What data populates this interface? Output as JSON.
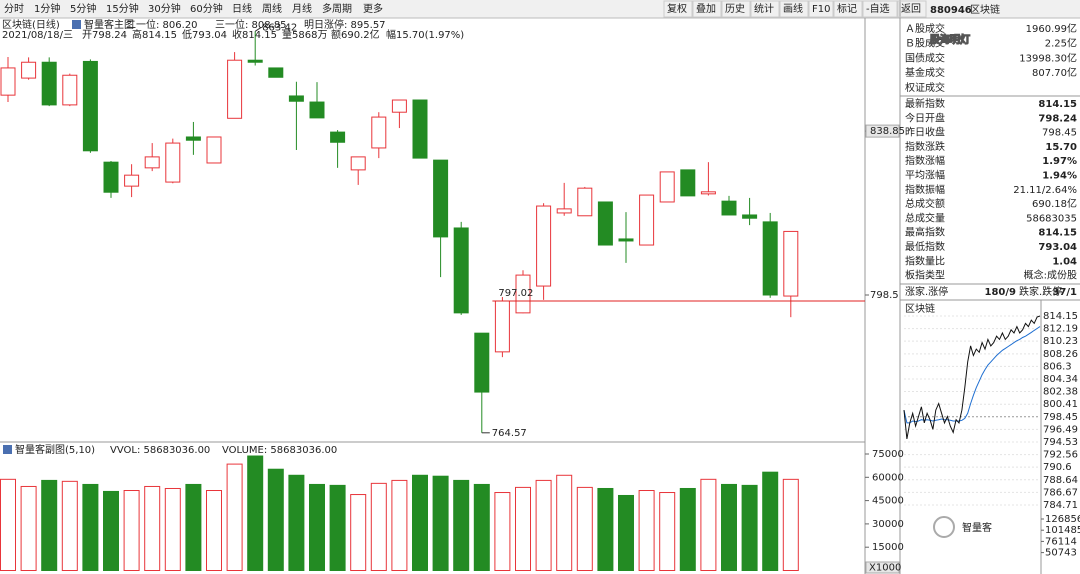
{
  "toolbar": {
    "tabs": [
      "分时",
      "1分钟",
      "5分钟",
      "15分钟",
      "30分钟",
      "60分钟",
      "日线",
      "周线",
      "月线",
      "多周期",
      "更多"
    ],
    "active_tab": 6,
    "buttons": [
      "复权",
      "叠加",
      "历史",
      "统计",
      "画线",
      "F10",
      "标记",
      "-自选",
      "返回"
    ]
  },
  "kline": {
    "name": "区块链(日线)",
    "indicator": "智量客主图",
    "items": [
      "二一位: 806.20",
      "三一位: 808.85",
      "明日涨停: 895.57"
    ],
    "info": [
      {
        "text": "2021/08/18/三",
        "color": "#1a4fb0"
      },
      {
        "text": "开798.24",
        "color": "#1c8a1c"
      },
      {
        "text": "高814.15",
        "color": "#e02020"
      },
      {
        "text": "低793.04",
        "color": "#1c8a1c"
      },
      {
        "text": "收814.15",
        "color": "#e02020"
      },
      {
        "text": "量5868万",
        "color": "#333333"
      },
      {
        "text": "额690.2亿",
        "color": "#333333"
      },
      {
        "text": "幅15.70(1.97%)",
        "color": "#e02020"
      }
    ],
    "open": [
      847.7,
      851.9,
      855.8,
      845.3,
      856.0,
      831.2,
      825.3,
      829.8,
      826.3,
      837.4,
      831.0,
      842.0,
      856.3,
      854.4,
      847.5,
      846.0,
      838.6,
      829.3,
      834.7,
      843.5,
      846.5,
      831.7,
      815.0,
      789.1,
      784.5,
      794.1,
      800.7,
      818.7,
      818.0,
      821.4,
      812.3,
      810.8,
      821.4,
      829.3,
      823.4,
      821.6,
      818.2,
      816.5,
      798.24
    ],
    "high": [
      857.1,
      857.0,
      857.0,
      853.0,
      856.5,
      831.5,
      830.7,
      835.9,
      837.0,
      841.1,
      837.4,
      858.3,
      863.42,
      854.4,
      851.0,
      850.9,
      839.1,
      832.5,
      843.5,
      846.5,
      846.5,
      831.7,
      816.5,
      789.1,
      798.0,
      804.6,
      821.1,
      826.1,
      825.1,
      821.4,
      818.9,
      823.1,
      828.8,
      829.3,
      831.2,
      822.9,
      822.4,
      818.7,
      814.15
    ],
    "low": [
      846.0,
      851.5,
      845.0,
      845.0,
      833.5,
      822.4,
      822.6,
      829.0,
      826.0,
      833.0,
      831.0,
      842.0,
      855.0,
      852.1,
      834.2,
      842.1,
      829.8,
      825.6,
      832.2,
      839.6,
      832.2,
      802.9,
      793.6,
      764.57,
      783.2,
      794.0,
      797.3,
      818.0,
      818.0,
      810.8,
      806.4,
      810.8,
      821.4,
      822.9,
      823.0,
      818.2,
      815.7,
      797.8,
      793.04
    ],
    "close": [
      854.4,
      855.8,
      845.3,
      852.6,
      834.0,
      823.8,
      828.0,
      832.5,
      835.9,
      836.6,
      837.4,
      856.3,
      855.8,
      852.1,
      846.2,
      842.1,
      836.1,
      832.5,
      842.3,
      846.5,
      832.2,
      812.8,
      794.1,
      774.6,
      797.02,
      803.4,
      820.4,
      819.7,
      824.8,
      810.8,
      811.8,
      823.1,
      828.8,
      822.9,
      823.9,
      818.2,
      817.4,
      798.5,
      814.15
    ],
    "ylim": [
      762.8,
      866.2
    ],
    "yticks": [
      838.85,
      798.5
    ],
    "up_color": "#e8353a",
    "down_color": "#238b23"
  },
  "volume": {
    "title": "智量客副图(5,10)",
    "items": [
      "VVOL: 58683036.00",
      "VOLUME: 58683036.00"
    ],
    "values": [
      58700,
      54100,
      58000,
      57400,
      55400,
      50900,
      51500,
      54100,
      52800,
      55400,
      51500,
      68500,
      73700,
      65200,
      61300,
      55400,
      54800,
      48900,
      56100,
      58000,
      61300,
      60700,
      58000,
      55400,
      50200,
      53500,
      58000,
      61300,
      53500,
      52800,
      48300,
      51500,
      50200,
      52800,
      58700,
      55400,
      54800,
      63300,
      58683
    ],
    "ylim": [
      0,
      75000
    ],
    "yticks": [
      75000,
      60000,
      45000,
      30000,
      15000
    ],
    "unit": "X1000"
  },
  "quote_panel": {
    "code": "880946",
    "name": "区块链",
    "rows": [
      {
        "label": "Ａ股成交",
        "value": "1960.99亿"
      },
      {
        "label": "Ｂ股成交",
        "value": "2.25亿"
      },
      {
        "label": "国债成交",
        "value": "13998.30亿"
      },
      {
        "label": "基金成交",
        "value": "807.70亿"
      },
      {
        "label": "权证成交"
      },
      {
        "label": "最新指数",
        "value": "814.15",
        "color": "#e02020"
      },
      {
        "label": "今日开盘",
        "value": "798.24",
        "color": "#1c8a1c"
      },
      {
        "label": "昨日收盘",
        "value": "798.45"
      },
      {
        "label": "指数涨跌",
        "value": "15.70",
        "color": "#e02020"
      },
      {
        "label": "指数涨幅",
        "value": "1.97%",
        "color": "#e02020"
      },
      {
        "label": "平均涨幅",
        "value": "1.94%",
        "color": "#e02020"
      },
      {
        "label": "指数振幅",
        "value": "21.11/2.64%"
      },
      {
        "label": "总成交额",
        "value": "690.18亿"
      },
      {
        "label": "总成交量",
        "value": "58683035"
      },
      {
        "label": "最高指数",
        "value": "814.15",
        "color": "#e02020"
      },
      {
        "label": "最低指数",
        "value": "793.04",
        "color": "#1c8a1c"
      },
      {
        "label": "指数量比",
        "value": "1.04",
        "color": "#e02020"
      },
      {
        "label": "板指类型",
        "value": "概念:成份股"
      }
    ],
    "breadth": {
      "up_label": "涨家.涨停",
      "up": "180/9",
      "down_label": "跌家.跌停",
      "down": "37/1"
    }
  },
  "intraday": {
    "title": "区块链",
    "price": [
      799.5,
      795.0,
      797.5,
      799.0,
      797.0,
      798.5,
      800.0,
      797.5,
      799.0,
      798.0,
      796.5,
      799.5,
      800.5,
      799.0,
      797.5,
      798.5,
      797.0,
      796.0,
      798.0,
      797.5,
      799.5,
      803.0,
      807.0,
      809.5,
      808.0,
      809.0,
      808.5,
      810.0,
      809.0,
      810.5,
      809.5,
      810.0,
      811.0,
      810.5,
      811.5,
      810.5,
      811.0,
      812.0,
      811.5,
      812.5,
      811.5,
      812.0,
      813.0,
      812.5,
      813.5,
      813.0,
      814.0,
      814.15
    ],
    "avg": [
      799.5,
      797.5,
      797.5,
      797.8,
      797.7,
      797.8,
      798.0,
      797.9,
      798.0,
      797.9,
      797.8,
      797.9,
      798.0,
      798.1,
      798.0,
      798.0,
      797.9,
      797.8,
      797.8,
      797.8,
      797.9,
      798.2,
      799.0,
      800.5,
      801.8,
      803.0,
      804.0,
      805.0,
      805.8,
      806.5,
      807.0,
      807.5,
      808.0,
      808.4,
      808.8,
      809.1,
      809.4,
      809.7,
      810.0,
      810.3,
      810.5,
      810.8,
      811.0,
      811.3,
      811.6,
      811.9,
      812.2,
      812.5
    ],
    "ylim": [
      784.71,
      814.15
    ],
    "yticks": [
      814.15,
      812.19,
      810.23,
      808.26,
      806.3,
      804.34,
      802.38,
      800.41,
      798.45,
      796.49,
      794.53,
      792.56,
      790.6,
      788.64,
      786.67,
      784.71
    ],
    "vol_ylim": [
      0,
      126856
    ],
    "vol_yticks": [
      126856,
      101485,
      76114,
      50743
    ],
    "price_color": "#111111",
    "avg_color": "#1f6fd1"
  },
  "watermarks": [
    "股海明灯",
    "智量客"
  ]
}
